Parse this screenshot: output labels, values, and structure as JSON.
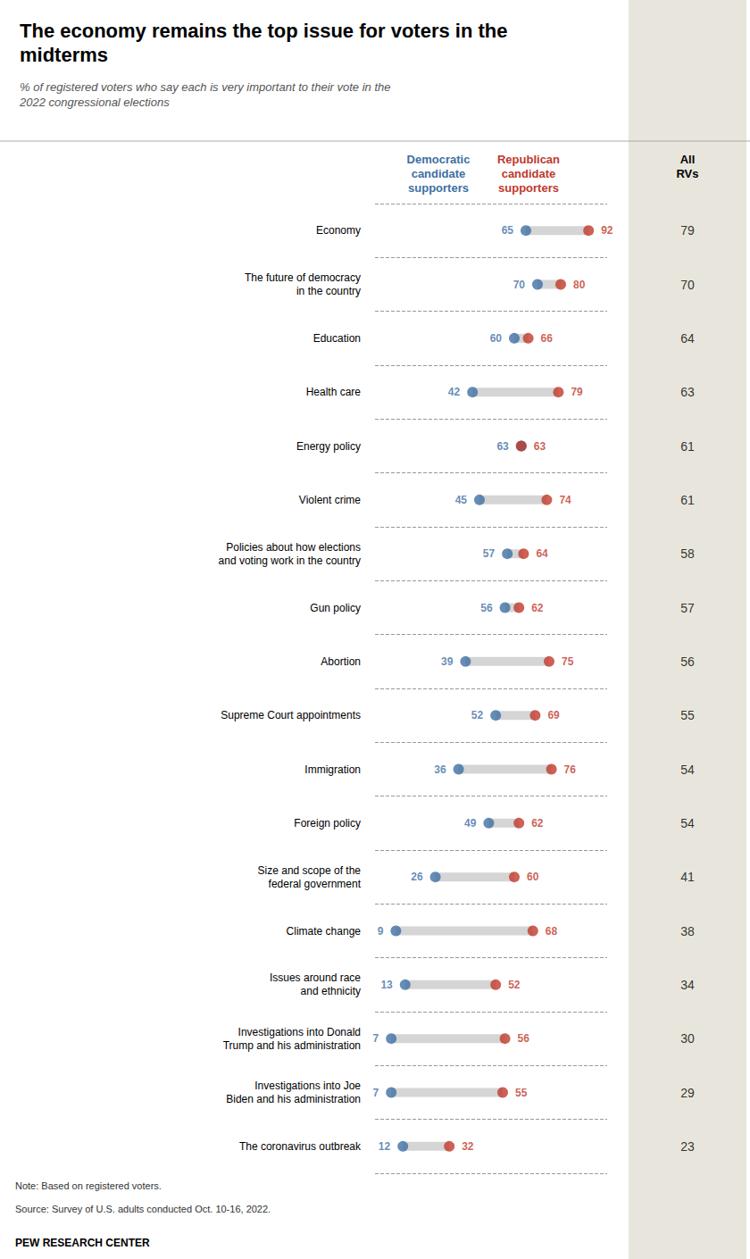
{
  "chart_data": {
    "type": "dumbbell",
    "title": "The economy remains the top issue for voters in the\nmidterms",
    "subtitle": "% of registered voters who say each is very important to their vote in the\n2022 congressional elections",
    "categories": [
      "Economy",
      "The future of democracy\nin the country",
      "Education",
      "Health care",
      "Energy policy",
      "Violent crime",
      "Policies about how elections\nand voting work in the country",
      "Gun policy",
      "Abortion",
      "Supreme Court appointments",
      "Immigration",
      "Foreign policy",
      "Size and scope of the\nfederal government",
      "Climate change",
      "Issues around race\nand ethnicity",
      "Investigations into Donald\nTrump and his administration",
      "Investigations into Joe\nBiden and his administration",
      "The coronavirus outbreak"
    ],
    "series": [
      {
        "name": "Democratic\ncandidate\nsupporters",
        "color": "#3E6FA3",
        "values": [
          65,
          70,
          60,
          42,
          63,
          45,
          57,
          56,
          39,
          52,
          36,
          49,
          26,
          9,
          13,
          7,
          7,
          12
        ]
      },
      {
        "name": "Republican\ncandidate\nsupporters",
        "color": "#C0392B",
        "values": [
          92,
          80,
          66,
          79,
          63,
          74,
          64,
          62,
          75,
          69,
          76,
          62,
          60,
          68,
          52,
          56,
          55,
          32
        ]
      },
      {
        "name": "All\nRVs",
        "type": "text",
        "color": "#E8E6DC",
        "values": [
          79,
          70,
          64,
          63,
          61,
          61,
          58,
          57,
          56,
          55,
          54,
          54,
          41,
          38,
          34,
          30,
          29,
          23
        ]
      }
    ],
    "color": "#D5D5D5",
    "xlim": [
      0,
      100
    ],
    "orientation": "horizontal",
    "tick_labels": "y",
    "grid": true,
    "data_labels": true,
    "annotations": [
      "Note: Based on registered voters.",
      "Source: Survey of U.S. adults conducted Oct. 10-16, 2022.",
      "PEW RESEARCH CENTER"
    ]
  }
}
